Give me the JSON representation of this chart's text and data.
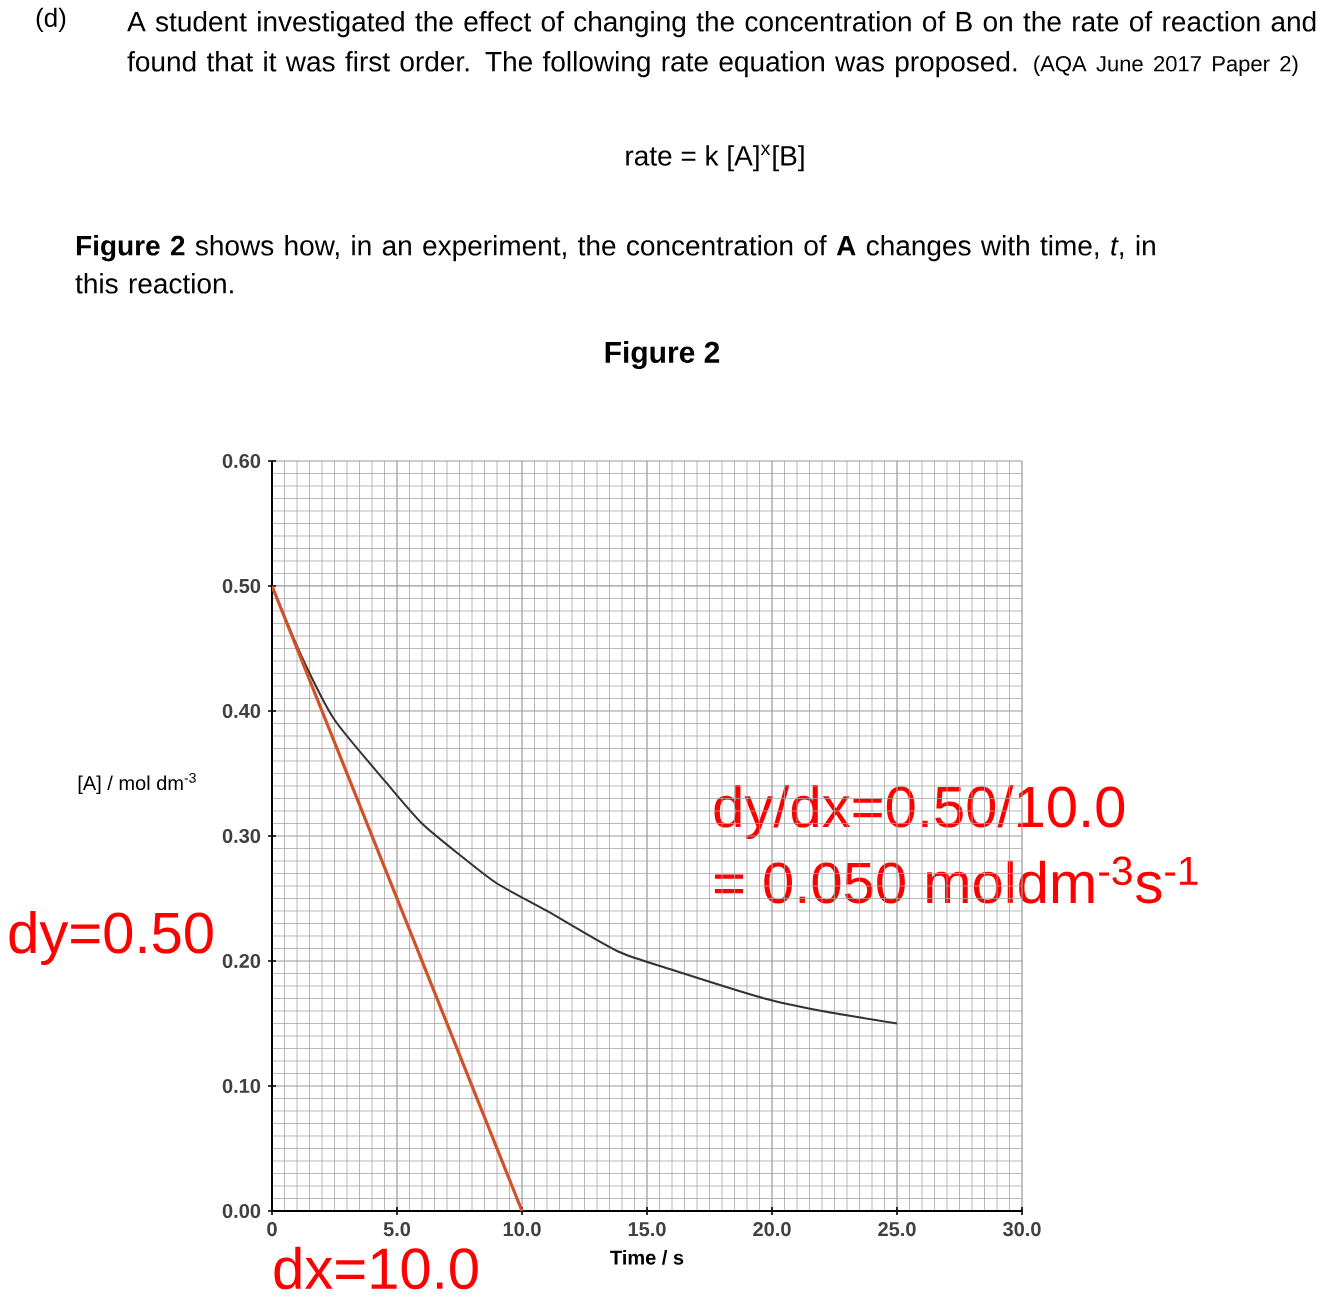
{
  "chart_data": {
    "type": "line",
    "title": "Figure 2",
    "xlabel": "Time / s",
    "ylabel": "[A] / mol dm$^{-3}$",
    "annotations": [
      "(d)",
      "A student investigated the effect of changing the concentration of B on the rate of reaction and found that it was first order. The following rate equation was proposed.",
      "(AQA June 2017 Paper 2)",
      "rate = k [A]$^{x}$[B]",
      "**Figure 2** shows how, in an experiment, the concentration of **A** changes with time, *t*, in this reaction.",
      "dy/dx=0.50/10.0",
      "= 0.050 moldm$^{-3}$s$^{-1}$",
      "dy=0.50",
      "dx=10.0"
    ],
    "series": [
      {
        "color": "#333333",
        "x": [
          0,
          1.2,
          2.5,
          4.6,
          6,
          7.5,
          9,
          11,
          13.8,
          16,
          19.7,
          22,
          25
        ],
        "values": [
          0.5,
          0.443,
          0.393,
          0.342,
          0.31,
          0.285,
          0.262,
          0.24,
          0.208,
          0.193,
          0.17,
          0.16,
          0.15
        ]
      },
      {
        "color": "#d2502a",
        "x": [
          0,
          10
        ],
        "values": [
          0.5,
          0
        ]
      }
    ],
    "xlim": [
      0,
      30
    ],
    "ylim": [
      0,
      0.6
    ],
    "xticks": [
      0,
      {
        "value": 5,
        "label": "5.0"
      },
      {
        "value": 10,
        "label": "10.0"
      },
      {
        "value": 15,
        "label": "15.0"
      },
      {
        "value": 20,
        "label": "20.0"
      },
      {
        "value": 25,
        "label": "25.0"
      },
      {
        "value": 30,
        "label": "30.0"
      }
    ],
    "yticks": [
      {
        "value": 0,
        "label": "0.00"
      },
      {
        "value": 0.1,
        "label": "0.10"
      },
      {
        "value": 0.2,
        "label": "0.20"
      },
      {
        "value": 0.3,
        "label": "0.30"
      },
      {
        "value": 0.4,
        "label": "0.40"
      },
      {
        "value": 0.5,
        "label": "0.50"
      },
      {
        "value": 0.6,
        "label": "0.60"
      }
    ],
    "grid": true
  }
}
